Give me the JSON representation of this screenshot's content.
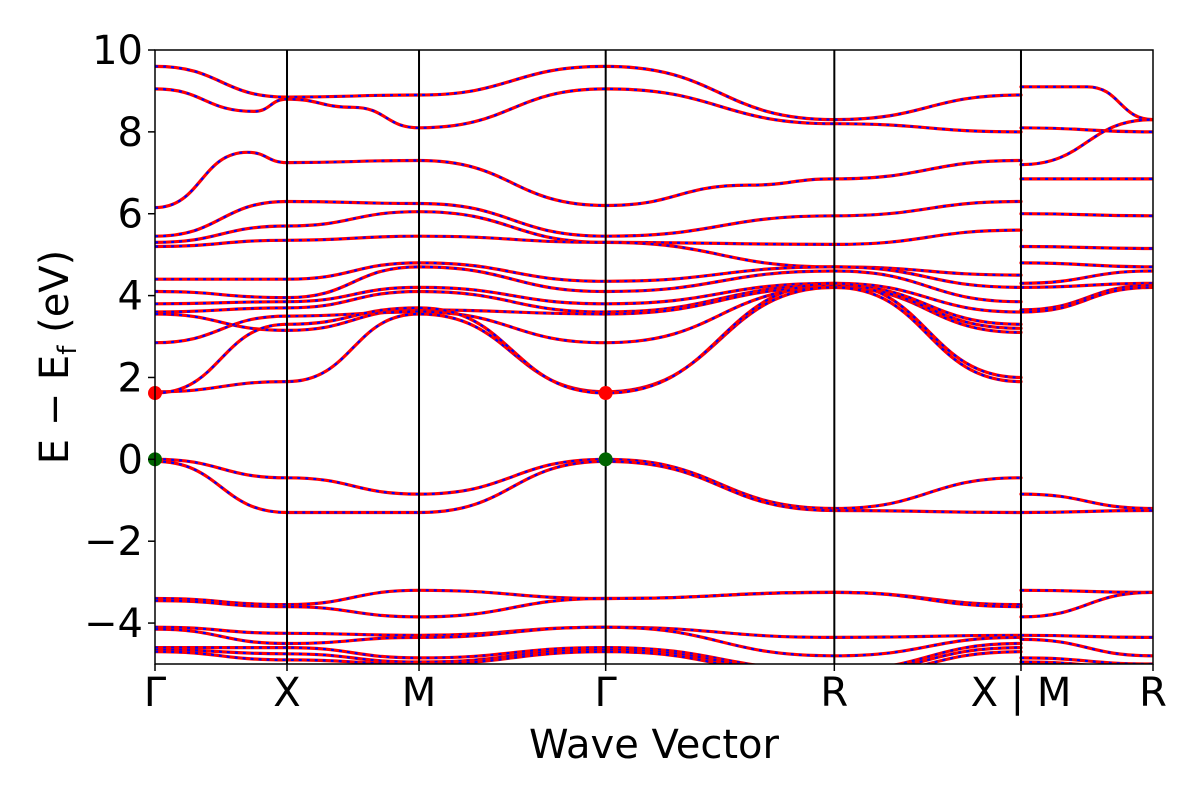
{
  "chart_data": {
    "type": "line",
    "title": "",
    "xlabel": "Wave Vector",
    "ylabel": "E − E",
    "ylabel_sub": "f",
    "ylabel_unit": " (eV)",
    "ylim": [
      -5,
      10
    ],
    "yticks": [
      -4,
      -2,
      0,
      2,
      4,
      6,
      8,
      10
    ],
    "ytick_labels": [
      "−4",
      "−2",
      "0",
      "2",
      "4",
      "6",
      "8",
      "10"
    ],
    "kpoint_labels": [
      "Γ",
      "X",
      "M",
      "Γ",
      "R",
      "X | M",
      "R"
    ],
    "kpoint_positions": [
      0,
      1,
      2,
      3.414,
      5.146,
      6.56,
      7.56
    ],
    "xlim": [
      0,
      7.56
    ],
    "grid": false,
    "legend": "none",
    "colors": {
      "band_primary": "#ff0000",
      "band_secondary": "#0000ff",
      "vbm_marker": "#006400",
      "cbm_marker": "#ff0000",
      "axis": "#000000"
    },
    "series": [
      {
        "points": [
          [
            0,
            9.6
          ],
          [
            1,
            8.85
          ],
          [
            2,
            8.9
          ],
          [
            3.414,
            9.6
          ],
          [
            5.146,
            8.3
          ],
          [
            6.56,
            8.9
          ]
        ]
      },
      {
        "points": [
          [
            6.56,
            9.1
          ],
          [
            7.06,
            9.1
          ],
          [
            7.56,
            8.3
          ]
        ]
      },
      {
        "points": [
          [
            0,
            9.05
          ],
          [
            0.75,
            8.5
          ],
          [
            1,
            8.8
          ],
          [
            1.5,
            8.6
          ],
          [
            2,
            8.1
          ],
          [
            3.414,
            9.05
          ],
          [
            5.146,
            8.2
          ],
          [
            6.56,
            8.0
          ]
        ]
      },
      {
        "points": [
          [
            6.56,
            8.1
          ],
          [
            7.56,
            8.0
          ]
        ]
      },
      {
        "points": [
          [
            0,
            6.15
          ],
          [
            0.7,
            7.5
          ],
          [
            1,
            7.25
          ],
          [
            2,
            7.3
          ],
          [
            3.414,
            6.2
          ],
          [
            4.5,
            6.7
          ],
          [
            5.146,
            6.85
          ],
          [
            6.56,
            7.3
          ]
        ]
      },
      {
        "points": [
          [
            6.56,
            7.2
          ],
          [
            7.56,
            8.3
          ]
        ]
      },
      {
        "points": [
          [
            0,
            5.45
          ],
          [
            1,
            6.3
          ],
          [
            2,
            6.25
          ],
          [
            3.414,
            5.45
          ],
          [
            5.146,
            5.95
          ],
          [
            6.56,
            6.3
          ]
        ]
      },
      {
        "points": [
          [
            6.56,
            6.85
          ],
          [
            7.56,
            6.85
          ]
        ]
      },
      {
        "points": [
          [
            0,
            5.3
          ],
          [
            1,
            5.7
          ],
          [
            2,
            6.05
          ],
          [
            3.414,
            5.3
          ],
          [
            5.146,
            5.25
          ],
          [
            6.56,
            5.6
          ]
        ]
      },
      {
        "points": [
          [
            6.56,
            6.0
          ],
          [
            7.56,
            5.95
          ]
        ]
      },
      {
        "points": [
          [
            0,
            5.2
          ],
          [
            1,
            5.35
          ],
          [
            2,
            5.45
          ],
          [
            3.414,
            5.3
          ],
          [
            5.146,
            4.7
          ],
          [
            6.56,
            4.5
          ]
        ]
      },
      {
        "points": [
          [
            6.56,
            5.2
          ],
          [
            7.56,
            5.15
          ]
        ]
      },
      {
        "points": [
          [
            0,
            4.4
          ],
          [
            1,
            4.4
          ],
          [
            2,
            4.8
          ],
          [
            3.414,
            4.35
          ],
          [
            5.146,
            4.7
          ],
          [
            6.56,
            4.2
          ]
        ]
      },
      {
        "points": [
          [
            6.56,
            4.8
          ],
          [
            7.56,
            4.7
          ]
        ]
      },
      {
        "points": [
          [
            0,
            4.1
          ],
          [
            1,
            3.95
          ],
          [
            2,
            4.7
          ],
          [
            3.414,
            4.1
          ],
          [
            5.146,
            4.6
          ],
          [
            6.56,
            3.85
          ]
        ]
      },
      {
        "points": [
          [
            6.56,
            4.3
          ],
          [
            7.56,
            4.6
          ]
        ]
      },
      {
        "points": [
          [
            0,
            3.8
          ],
          [
            1,
            3.85
          ],
          [
            2,
            4.2
          ],
          [
            3.414,
            3.8
          ],
          [
            5.146,
            4.3
          ],
          [
            6.56,
            3.6
          ]
        ]
      },
      {
        "points": [
          [
            6.56,
            4.2
          ],
          [
            7.56,
            4.3
          ]
        ]
      },
      {
        "points": [
          [
            0,
            3.6
          ],
          [
            1,
            3.7
          ],
          [
            2,
            4.1
          ],
          [
            3.414,
            3.6
          ],
          [
            5.146,
            4.25
          ],
          [
            6.56,
            3.3
          ]
        ]
      },
      {
        "points": [
          [
            6.56,
            3.65
          ],
          [
            7.56,
            4.25
          ]
        ]
      },
      {
        "points": [
          [
            0,
            3.55
          ],
          [
            1,
            3.15
          ],
          [
            2,
            3.65
          ],
          [
            3.414,
            3.55
          ],
          [
            5.146,
            4.2
          ],
          [
            6.56,
            3.1
          ]
        ]
      },
      {
        "points": [
          [
            6.56,
            3.6
          ],
          [
            7.56,
            4.2
          ]
        ]
      },
      {
        "points": [
          [
            0,
            2.85
          ],
          [
            1,
            3.5
          ],
          [
            2,
            3.6
          ],
          [
            3.414,
            2.85
          ],
          [
            5.146,
            4.2
          ],
          [
            6.56,
            3.2
          ]
        ]
      },
      {
        "points": [
          [
            0,
            1.65
          ],
          [
            1,
            1.9
          ],
          [
            2,
            3.55
          ],
          [
            3.414,
            1.65
          ],
          [
            5.146,
            4.2
          ],
          [
            6.56,
            1.9
          ]
        ]
      },
      {
        "points": [
          [
            0,
            1.62
          ],
          [
            1,
            3.3
          ],
          [
            2,
            3.7
          ],
          [
            3.414,
            1.62
          ],
          [
            5.146,
            4.3
          ],
          [
            6.56,
            2.0
          ]
        ]
      },
      {
        "points": [
          [
            0,
            0.0
          ],
          [
            1,
            -0.45
          ],
          [
            2,
            -0.85
          ],
          [
            3.414,
            0.0
          ],
          [
            5.146,
            -1.2
          ],
          [
            6.56,
            -0.45
          ]
        ]
      },
      {
        "points": [
          [
            6.56,
            -0.85
          ],
          [
            7.56,
            -1.2
          ]
        ]
      },
      {
        "points": [
          [
            0,
            -0.05
          ],
          [
            1,
            -1.3
          ],
          [
            2,
            -1.3
          ],
          [
            3.414,
            -0.05
          ],
          [
            5.146,
            -1.25
          ],
          [
            6.56,
            -1.3
          ]
        ]
      },
      {
        "points": [
          [
            6.56,
            -1.3
          ],
          [
            7.56,
            -1.25
          ]
        ]
      },
      {
        "points": [
          [
            0,
            -3.4
          ],
          [
            1,
            -3.55
          ],
          [
            2,
            -3.2
          ],
          [
            3.414,
            -3.4
          ],
          [
            5.146,
            -3.25
          ],
          [
            6.56,
            -3.55
          ]
        ]
      },
      {
        "points": [
          [
            6.56,
            -3.2
          ],
          [
            7.56,
            -3.25
          ]
        ]
      },
      {
        "points": [
          [
            0,
            -3.45
          ],
          [
            1,
            -3.6
          ],
          [
            2,
            -3.85
          ],
          [
            3.414,
            -3.4
          ],
          [
            5.146,
            -3.25
          ],
          [
            6.56,
            -3.6
          ]
        ]
      },
      {
        "points": [
          [
            6.56,
            -3.85
          ],
          [
            7.56,
            -3.25
          ]
        ]
      },
      {
        "points": [
          [
            0,
            -4.1
          ],
          [
            1,
            -4.25
          ],
          [
            2,
            -4.3
          ],
          [
            3.414,
            -4.1
          ],
          [
            5.146,
            -4.35
          ],
          [
            6.56,
            -4.3
          ]
        ]
      },
      {
        "points": [
          [
            6.56,
            -4.3
          ],
          [
            7.56,
            -4.35
          ]
        ]
      },
      {
        "points": [
          [
            0,
            -4.15
          ],
          [
            1,
            -4.5
          ],
          [
            2,
            -4.35
          ],
          [
            3.414,
            -4.1
          ],
          [
            5.146,
            -4.8
          ],
          [
            6.56,
            -4.35
          ]
        ]
      },
      {
        "points": [
          [
            6.56,
            -4.4
          ],
          [
            7.56,
            -4.8
          ]
        ]
      },
      {
        "points": [
          [
            0,
            -4.6
          ],
          [
            1,
            -4.6
          ],
          [
            2,
            -4.85
          ],
          [
            3.414,
            -4.6
          ],
          [
            5.146,
            -5.15
          ],
          [
            6.56,
            -4.5
          ]
        ]
      },
      {
        "points": [
          [
            6.56,
            -4.85
          ],
          [
            7.56,
            -5.0
          ]
        ]
      },
      {
        "points": [
          [
            0,
            -4.65
          ],
          [
            1,
            -4.75
          ],
          [
            2,
            -4.95
          ],
          [
            3.414,
            -4.65
          ],
          [
            5.146,
            -5.2
          ],
          [
            6.56,
            -4.6
          ]
        ]
      },
      {
        "points": [
          [
            6.56,
            -4.95
          ],
          [
            7.56,
            -5.1
          ]
        ]
      },
      {
        "points": [
          [
            0,
            -4.7
          ],
          [
            1,
            -4.9
          ],
          [
            2,
            -5.0
          ],
          [
            3.414,
            -4.7
          ],
          [
            5.146,
            -5.3
          ],
          [
            6.56,
            -4.7
          ]
        ]
      }
    ],
    "markers": [
      {
        "x": 0,
        "y": 1.62,
        "color": "#ff0000"
      },
      {
        "x": 3.414,
        "y": 1.62,
        "color": "#ff0000"
      },
      {
        "x": 0,
        "y": 0.0,
        "color": "#006400"
      },
      {
        "x": 3.414,
        "y": 0.0,
        "color": "#006400"
      }
    ]
  }
}
